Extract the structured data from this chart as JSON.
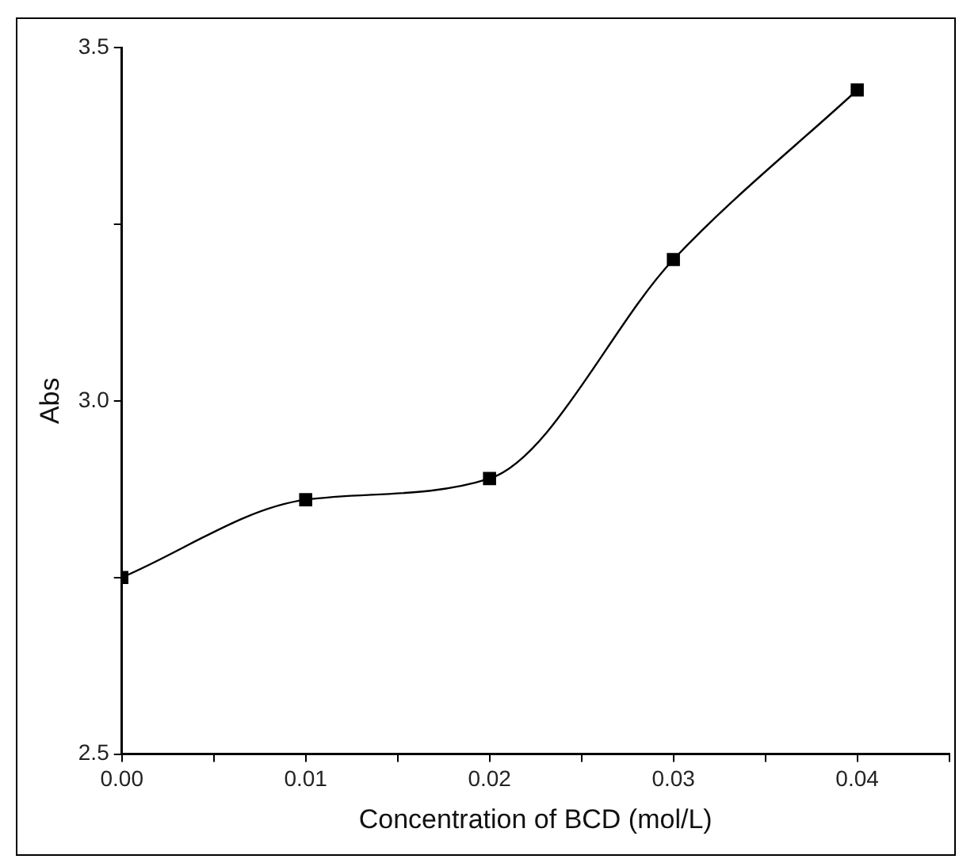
{
  "chart_data": {
    "type": "line",
    "xlabel": "Concentration of BCD (mol/L)",
    "ylabel": "Abs",
    "x": [
      0,
      0.01,
      0.02,
      0.03,
      0.04
    ],
    "series": [
      {
        "color": "#000000",
        "values": [
          2.75,
          2.86,
          2.89,
          3.2,
          3.44
        ]
      }
    ],
    "xlim": [
      0,
      0.045
    ],
    "xticks": [
      {
        "value": 0,
        "label": "0.00"
      },
      {
        "value": 0.005,
        "label": null
      },
      {
        "value": 0.01,
        "label": "0.01"
      },
      {
        "value": 0.015,
        "label": null
      },
      {
        "value": 0.02,
        "label": "0.02"
      },
      {
        "value": 0.025,
        "label": null
      },
      {
        "value": 0.03,
        "label": "0.03"
      },
      {
        "value": 0.035,
        "label": null
      },
      {
        "value": 0.04,
        "label": "0.04"
      },
      {
        "value": 0.045,
        "label": null
      }
    ],
    "ylim": [
      2.5,
      3.5
    ],
    "yticks": [
      {
        "value": 2.5,
        "label": "2.5"
      },
      {
        "value": 2.75,
        "label": null
      },
      {
        "value": 3.0,
        "label": "3.0"
      },
      {
        "value": 3.25,
        "label": null
      },
      {
        "value": 3.5,
        "label": "3.5"
      }
    ],
    "grid": false,
    "legend": false,
    "marker": "square",
    "line_style": "solid"
  }
}
